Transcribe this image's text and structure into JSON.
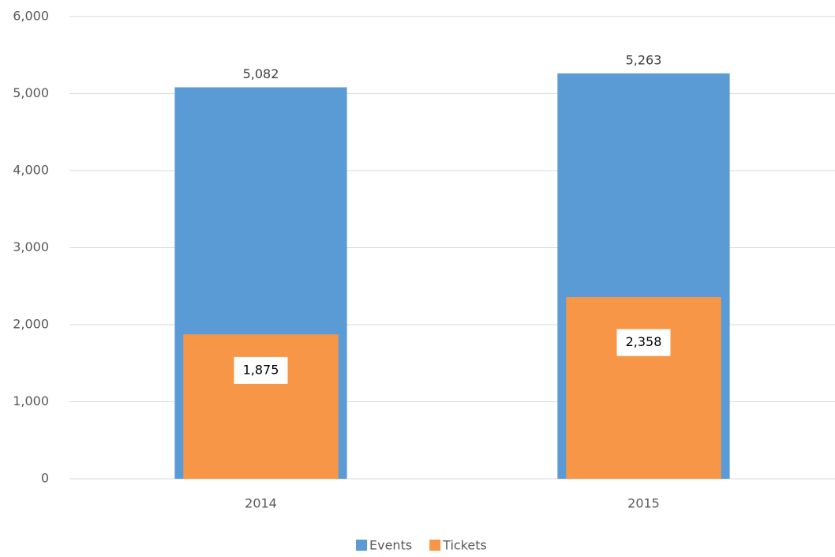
{
  "chart_data": {
    "type": "bar",
    "categories": [
      "2014",
      "2015"
    ],
    "series": [
      {
        "name": "Events",
        "color": "#5b9bd5",
        "values": [
          5082,
          5263
        ],
        "value_labels": [
          "5,082",
          "5,263"
        ]
      },
      {
        "name": "Tickets",
        "color": "#f79646",
        "values": [
          1875,
          2358
        ],
        "value_labels": [
          "1,875",
          "2,358"
        ]
      }
    ],
    "ylim": [
      0,
      6000
    ],
    "yticks": [
      0,
      {
        "value": 1000,
        "label": "1,000"
      },
      {
        "value": 2000,
        "label": "2,000"
      },
      {
        "value": 3000,
        "label": "3,000"
      },
      {
        "value": 4000,
        "label": "4,000"
      },
      {
        "value": 5000,
        "label": "5,000"
      },
      {
        "value": 6000,
        "label": "6,000"
      }
    ],
    "grid": true,
    "legend": "bottom"
  }
}
